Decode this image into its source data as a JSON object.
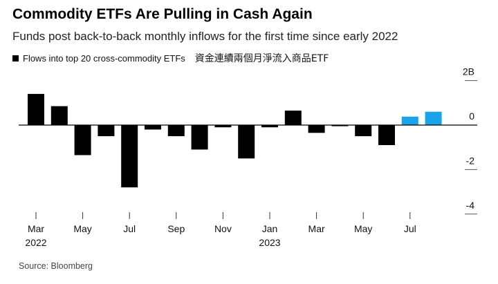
{
  "chart_data": {
    "type": "bar",
    "title": "Commodity ETFs Are Pulling in Cash Again",
    "subtitle": "Funds post back-to-back monthly inflows for the first time since early 2022",
    "legend": [
      "Flows into top 20 cross-commodity ETFs"
    ],
    "legend_note": "資金連續兩個月淨流入商品ETF",
    "source": "Source: Bloomberg",
    "unit": "B",
    "categories": [
      "Mar 2022",
      "Apr 2022",
      "May 2022",
      "Jun 2022",
      "Jul 2022",
      "Aug 2022",
      "Sep 2022",
      "Oct 2022",
      "Nov 2022",
      "Dec 2022",
      "Jan 2023",
      "Feb 2023",
      "Mar 2023",
      "Apr 2023",
      "May 2023",
      "Jun 2023",
      "Jul 2023",
      "Aug 2023"
    ],
    "values": [
      1.4,
      0.85,
      -1.35,
      -0.5,
      -2.8,
      -0.2,
      -0.5,
      -1.1,
      -0.1,
      -1.5,
      -0.1,
      0.65,
      -0.35,
      -0.05,
      -0.5,
      -0.9,
      0.38,
      0.6
    ],
    "highlight_color": "#1aa3e8",
    "bar_color": "#000000",
    "highlight_indices": [
      16,
      17
    ],
    "ylim": [
      -4.3,
      2.3
    ],
    "yticks": [
      {
        "value": 2,
        "label": "2B"
      },
      {
        "value": 0,
        "label": "0"
      },
      {
        "value": -2,
        "label": "-2"
      },
      {
        "value": -4,
        "label": "-4"
      }
    ],
    "xticks": [
      {
        "index": 0,
        "label": "Mar",
        "year": "2022"
      },
      {
        "index": 2,
        "label": "May",
        "year": ""
      },
      {
        "index": 4,
        "label": "Jul",
        "year": ""
      },
      {
        "index": 6,
        "label": "Sep",
        "year": ""
      },
      {
        "index": 8,
        "label": "Nov",
        "year": ""
      },
      {
        "index": 10,
        "label": "Jan",
        "year": "2023"
      },
      {
        "index": 12,
        "label": "Mar",
        "year": ""
      },
      {
        "index": 14,
        "label": "May",
        "year": ""
      },
      {
        "index": 16,
        "label": "Jul",
        "year": ""
      }
    ]
  }
}
